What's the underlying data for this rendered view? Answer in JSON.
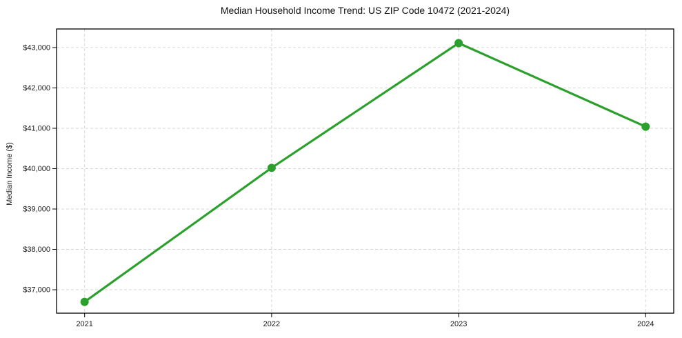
{
  "figure": {
    "background": "#ffffff"
  },
  "chart_data": {
    "type": "line",
    "title": "Median Household Income Trend: US ZIP Code 10472 (2021-2024)",
    "xlabel": "",
    "ylabel": "Median Income ($)",
    "categories": [
      2021,
      2022,
      2023,
      2024
    ],
    "x_tick_labels": [
      "2021",
      "2022",
      "2023",
      "2024"
    ],
    "series": [
      {
        "name": "Median Household Income",
        "values": [
          36700,
          40020,
          43110,
          41040
        ],
        "color": "#2ca02c",
        "marker": "circle",
        "line_width": 3.2,
        "marker_radius": 6
      }
    ],
    "y_ticks": [
      37000,
      38000,
      39000,
      40000,
      41000,
      42000,
      43000
    ],
    "y_tick_labels": [
      "$37,000",
      "$38,000",
      "$39,000",
      "$40,000",
      "$41,000",
      "$42,000",
      "$43,000"
    ],
    "ylim": [
      36420,
      43460
    ],
    "xlim": [
      2020.85,
      2024.15
    ],
    "grid": true,
    "grid_style": "dashed",
    "grid_color": "#d6d6d6",
    "frame_color": "#000000",
    "tick_color": "#000000",
    "tick_label_color": "#1a1a1a",
    "legend": "none"
  }
}
